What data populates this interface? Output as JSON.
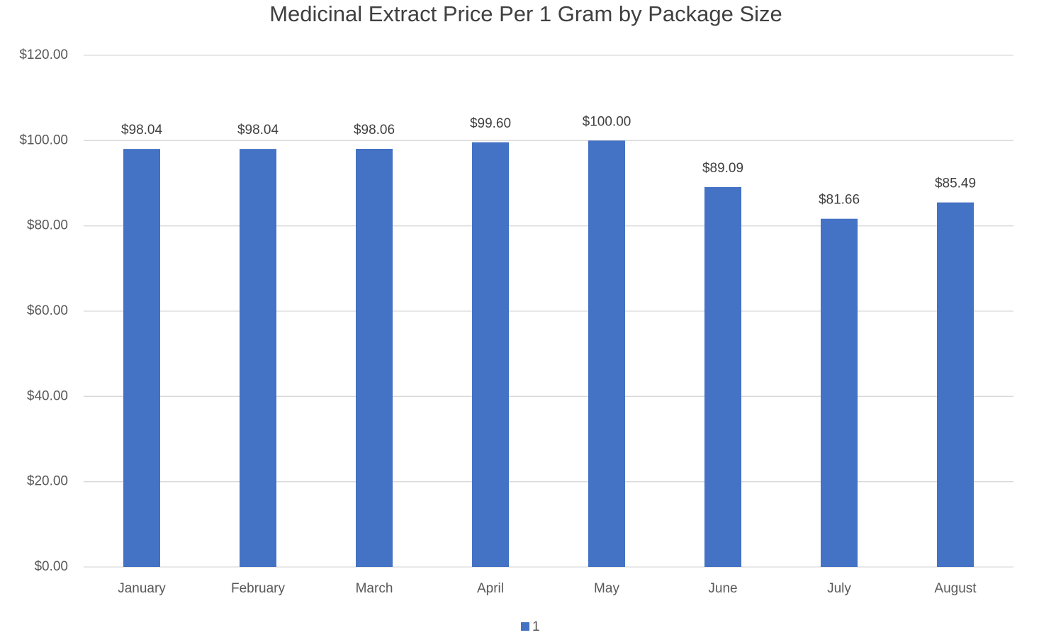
{
  "chart_data": {
    "type": "bar",
    "title": "Medicinal Extract Price Per 1 Gram by Package Size",
    "categories": [
      "January",
      "February",
      "March",
      "April",
      "May",
      "June",
      "July",
      "August"
    ],
    "series": [
      {
        "name": "1",
        "color": "#4472c4",
        "values": [
          98.04,
          98.04,
          98.06,
          99.6,
          100.0,
          89.09,
          81.66,
          85.49
        ],
        "value_labels": [
          "$98.04",
          "$98.04",
          "$98.06",
          "$99.60",
          "$100.00",
          "$89.09",
          "$81.66",
          "$85.49"
        ]
      }
    ],
    "ylim": [
      0,
      120
    ],
    "yticks": [
      {
        "value": 0,
        "label": "$0.00"
      },
      {
        "value": 20,
        "label": "$20.00"
      },
      {
        "value": 40,
        "label": "$40.00"
      },
      {
        "value": 60,
        "label": "$60.00"
      },
      {
        "value": 80,
        "label": "$80.00"
      },
      {
        "value": 100,
        "label": "$100.00"
      },
      {
        "value": 120,
        "label": "$120.00"
      }
    ],
    "grid": true,
    "legend": "bottom"
  }
}
